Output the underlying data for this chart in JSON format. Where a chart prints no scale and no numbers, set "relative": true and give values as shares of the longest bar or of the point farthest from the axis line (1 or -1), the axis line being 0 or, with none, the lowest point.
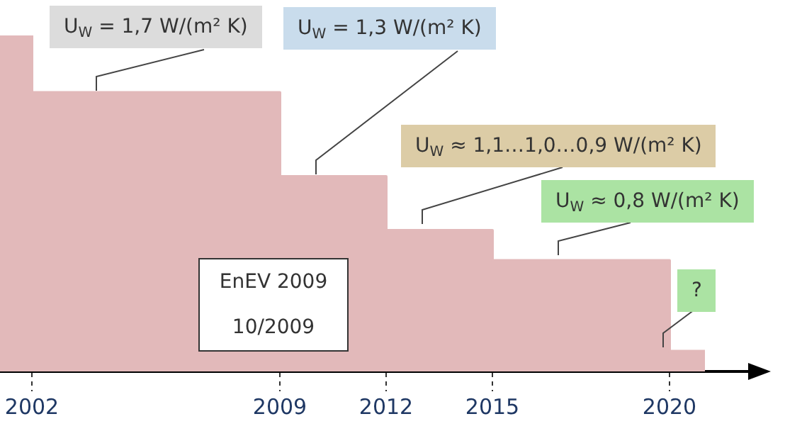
{
  "chart_data": {
    "type": "area",
    "relative": true,
    "x": [
      2001.1,
      2002,
      2002,
      2009,
      2009,
      2012,
      2012,
      2015,
      2015,
      2020,
      2020,
      2021
    ],
    "series": [
      {
        "color": "#e2b9ba",
        "values": [
          1,
          1,
          0.83,
          0.83,
          0.58,
          0.58,
          0.42,
          0.42,
          0.33,
          0.33,
          0.06,
          0.06
        ]
      }
    ],
    "xlim": [
      2001.1,
      2022.3
    ],
    "xticks": [
      2002,
      2009,
      2012,
      2015,
      2020
    ],
    "legend": false,
    "annotations": [
      "U$_{W}$ = 1,7 W/(m² K)",
      "U$_{W}$ = 1,3 W/(m² K)",
      "U$_{W}$ ≈ 1,1…1,0…0,9 W/(m² K)",
      "U$_{W}$ ≈ 0,8 W/(m² K)",
      "?",
      "EnEV 2009\n10/2009"
    ]
  }
}
